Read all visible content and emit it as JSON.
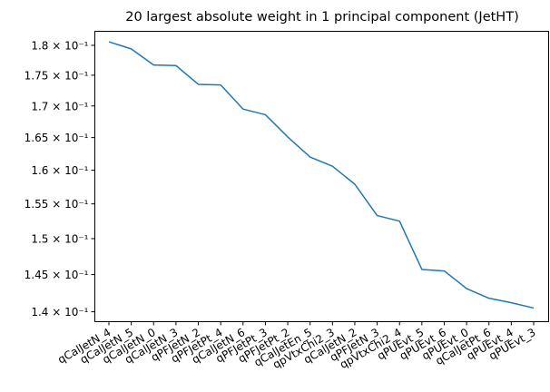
{
  "chart_data": {
    "type": "line",
    "title": "20 largest absolute weight in 1 principal component (JetHT)",
    "xlabel": "",
    "ylabel": "",
    "categories": [
      "qCalJetN_4",
      "qCalJetN_5",
      "qCalJetN_0",
      "qCalJetN_3",
      "qPFJetN_2",
      "qPFJetPt_4",
      "qCalJetN_6",
      "qPFJetPt_3",
      "qPFJetPt_2",
      "qCalJetEn_5",
      "qpVtxChi2_3",
      "qCalJetN_2",
      "qPFJetN_3",
      "qpVtxChi2_4",
      "qPUEvt_5",
      "qPUEvt_6",
      "qPUEvt_0",
      "qCalJetPt_6",
      "qPUEvt_4",
      "qPUEvt_3"
    ],
    "series": [
      {
        "color": "#1f77b4",
        "values": [
          0.1806,
          0.1794,
          0.1767,
          0.1766,
          0.1735,
          0.1734,
          0.1695,
          0.1686,
          0.1651,
          0.162,
          0.1606,
          0.1579,
          0.1533,
          0.1525,
          0.1457,
          0.1455,
          0.1431,
          0.1418,
          0.1412,
          0.1405
        ]
      }
    ],
    "y_scale": "log",
    "yticks": [
      0.14,
      0.145,
      0.15,
      0.155,
      0.16,
      0.165,
      0.17,
      0.175,
      0.18
    ],
    "ytick_labels": [
      "1.4 × 10⁻¹",
      "1.45 × 10⁻¹",
      "1.5 × 10⁻¹",
      "1.55 × 10⁻¹",
      "1.6 × 10⁻¹",
      "1.65 × 10⁻¹",
      "1.7 × 10⁻¹",
      "1.75 × 10⁻¹",
      "1.8 × 10⁻¹"
    ],
    "ylim": [
      0.1387,
      0.1824
    ],
    "grid": false,
    "legend": "none"
  }
}
